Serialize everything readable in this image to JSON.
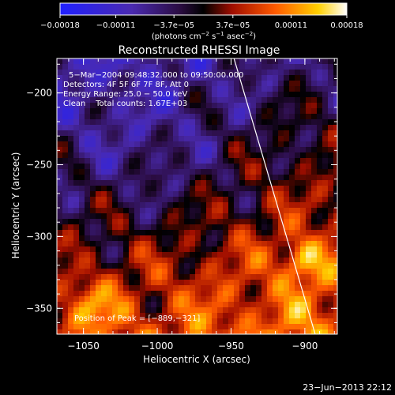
{
  "chart_data": {
    "type": "heatmap",
    "title": "Reconstructed RHESSI Image",
    "xlabel": "Heliocentric X (arcsec)",
    "ylabel": "Heliocentric Y (arcsec)",
    "xlim": [
      -1068,
      -878
    ],
    "ylim": [
      -368,
      -176
    ],
    "x_ticks": [
      -1050,
      -1000,
      -950,
      -900
    ],
    "x_tick_labels": [
      "−1050",
      "−1000",
      "−950",
      "−900"
    ],
    "y_ticks": [
      -200,
      -250,
      -300,
      -350
    ],
    "y_tick_labels": [
      "−200",
      "−250",
      "−300",
      "−350"
    ],
    "colorbar": {
      "range": [
        -0.00018,
        0.00018
      ],
      "ticks": [
        -0.00018,
        -0.00011,
        -3.7e-05,
        3.7e-05,
        0.00011,
        0.00018
      ],
      "tick_labels": [
        "−0.00018",
        "−0.00011",
        "−3.7e−05",
        "3.7e−05",
        "0.00011",
        "0.00018"
      ],
      "units_main": "(photons cm",
      "units_sup1": "−2",
      "units_mid": " s",
      "units_sup2": "−1",
      "units_mid2": " asec",
      "units_sup3": "−2",
      "units_end": ")",
      "colors": [
        "#2020ff",
        "#4030c8",
        "#602080",
        "#000000",
        "#b01000",
        "#ff5a00",
        "#ffd000",
        "#ffffff"
      ]
    },
    "annotations": {
      "line1": "5−Mar−2004 09:48:32.000 to 09:50:00.000",
      "line2": "Detectors: 4F 5F 6F 7F 8F, Att 0",
      "line3": "Energy Range: 25.0 − 50.0 keV",
      "line4": "Clean    Total counts: 1.67E+03",
      "peak": "Position of Peak = [−889,−321]"
    },
    "peak_position": [
      -889,
      -321
    ],
    "limb_line": {
      "x": [
        -948,
        -893
      ],
      "y": [
        -176,
        -368
      ]
    }
  },
  "footer": {
    "timestamp": "23−Jun−2013 22:12"
  }
}
